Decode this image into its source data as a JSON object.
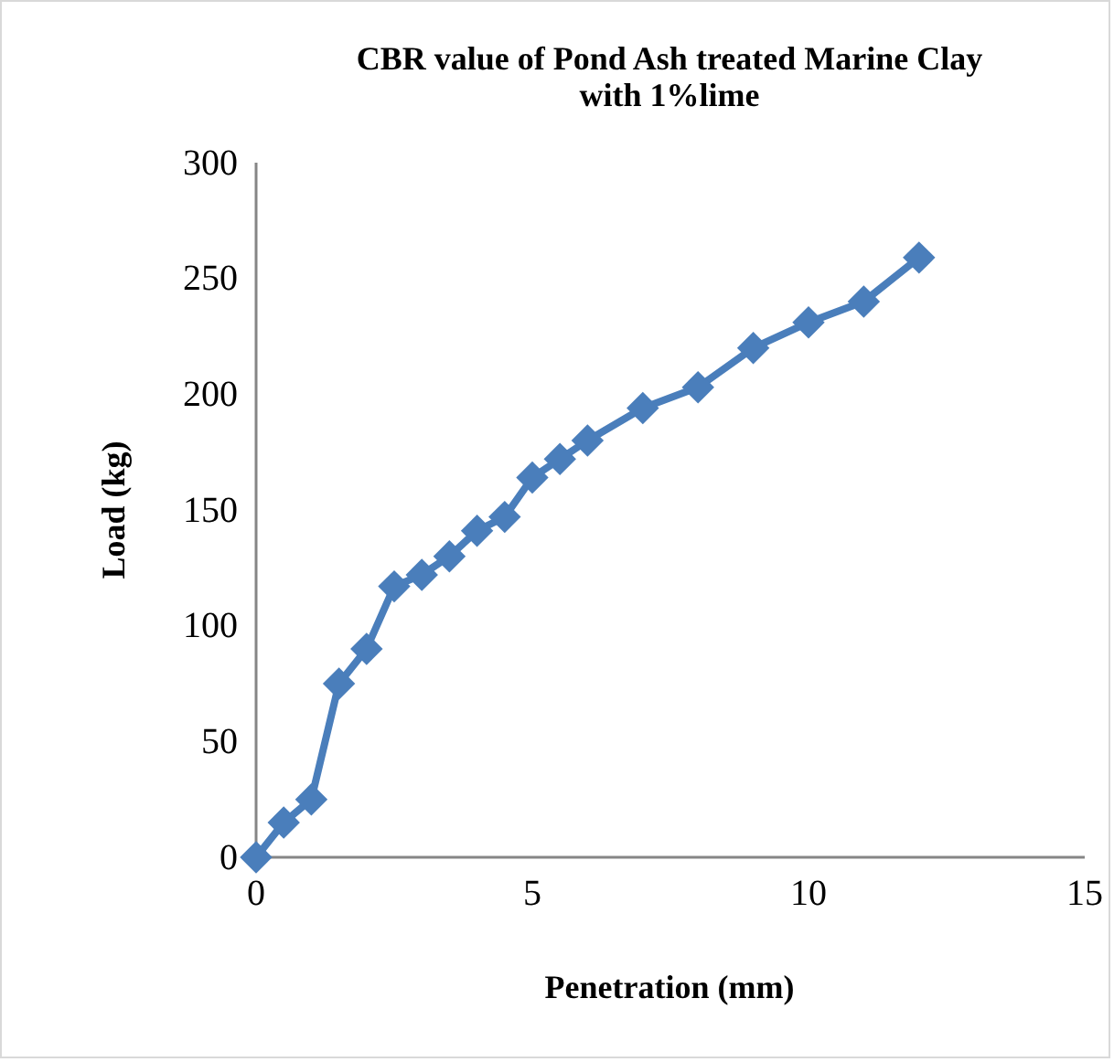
{
  "chart_data": {
    "type": "line",
    "title": "CBR value of Pond Ash treated Marine Clay with 1%lime",
    "xlabel": "Penetration (mm)",
    "ylabel": "Load (kg)",
    "x": [
      0,
      0.5,
      1,
      1.5,
      2,
      2.5,
      3,
      3.5,
      4,
      4.5,
      5,
      5.5,
      6,
      7,
      8,
      9,
      10,
      11,
      12
    ],
    "series": [
      {
        "color": "#4a7ebb",
        "values": [
          0,
          15,
          25,
          75,
          90,
          117,
          122,
          130,
          141,
          147,
          164,
          172,
          180,
          194,
          203,
          220,
          231,
          240,
          259
        ]
      }
    ],
    "xlim": [
      0,
      15
    ],
    "xticks": [
      0,
      5,
      10,
      15
    ],
    "ylim": [
      0,
      300
    ],
    "yticks": [
      0,
      50,
      100,
      150,
      200,
      250,
      300
    ],
    "grid": false,
    "marker": "diamond",
    "line_style": "solid"
  }
}
